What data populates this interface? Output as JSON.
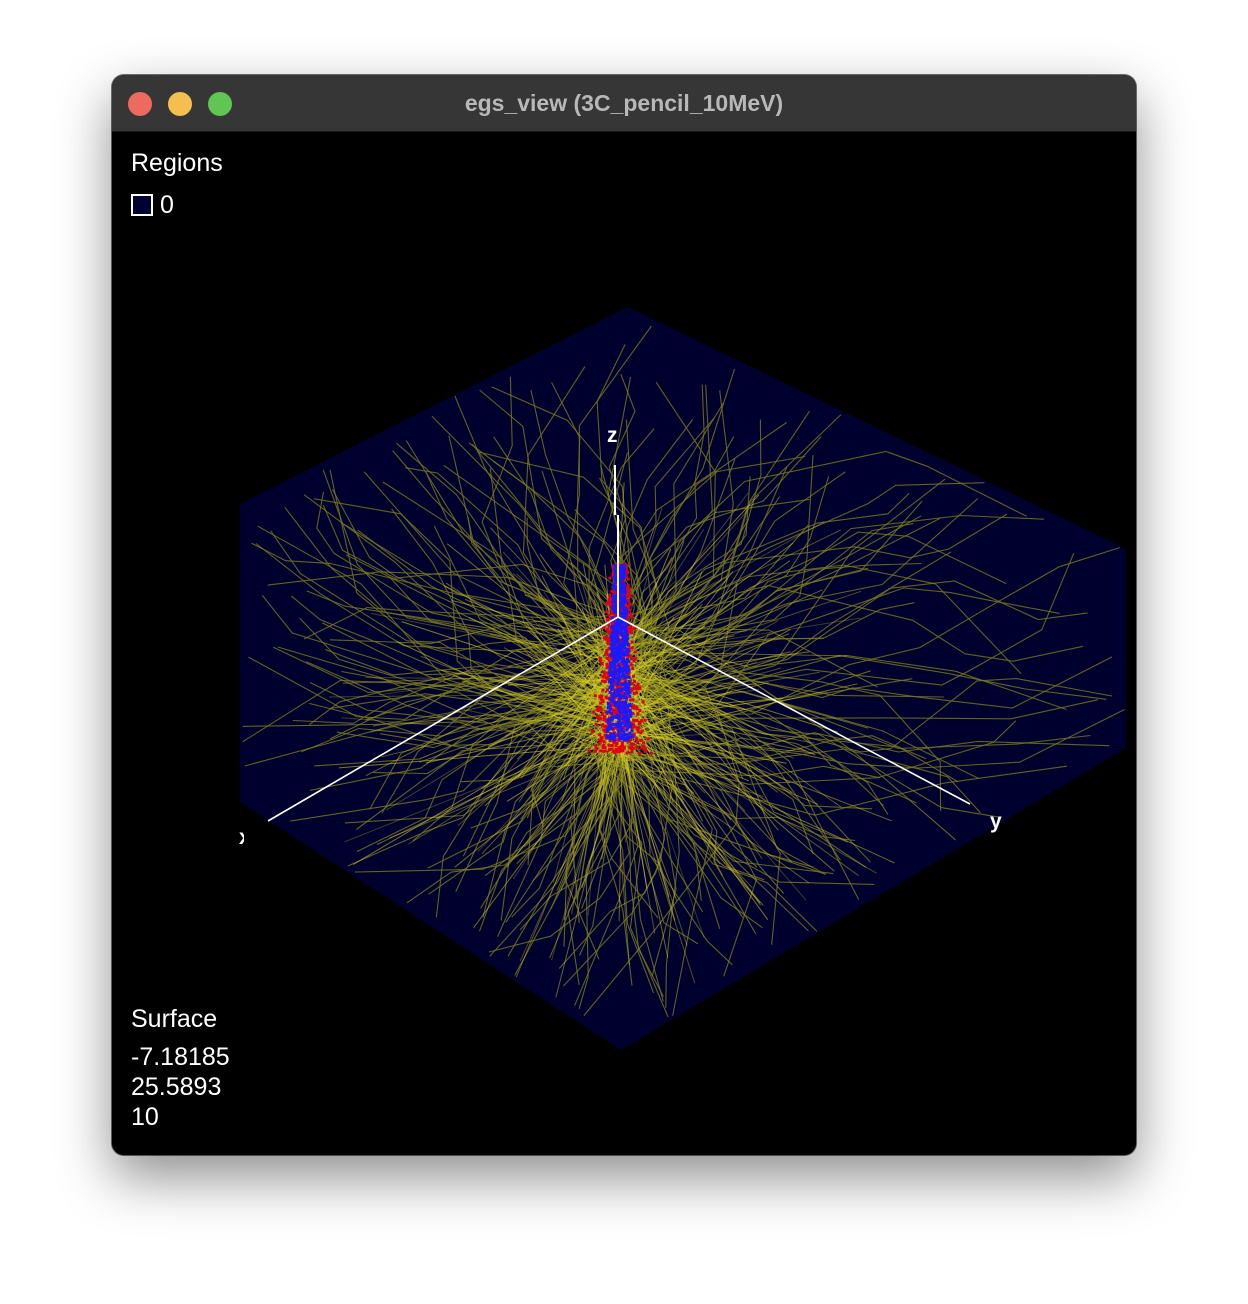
{
  "window": {
    "title": "egs_view (3C_pencil_10MeV)"
  },
  "legend": {
    "heading": "Regions",
    "regions": [
      {
        "label": "0",
        "color": "#000033"
      }
    ]
  },
  "surface": {
    "heading": "Surface",
    "values": [
      "-7.18185",
      "25.5893",
      "10"
    ]
  },
  "axes": {
    "x": "x",
    "y": "y",
    "z": "z"
  },
  "colors": {
    "background": "#000000",
    "slab": "#00002e",
    "photon_tracks": "#7a7a1e",
    "electron_tracks": "#e00010",
    "positron_tracks": "#1a1aff",
    "axis_lines": "#ffffff"
  }
}
